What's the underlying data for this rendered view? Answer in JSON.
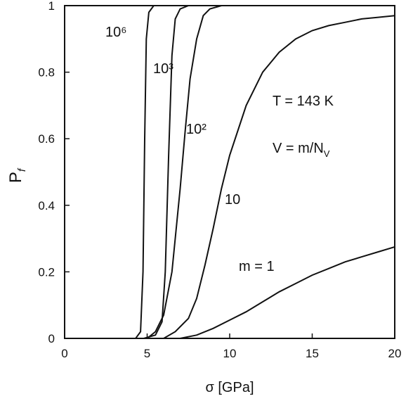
{
  "chart_data": {
    "type": "line",
    "xlabel": "σ [GPa]",
    "ylabel": {
      "text": "P",
      "sub": "f"
    },
    "xlim": [
      0,
      20
    ],
    "ylim": [
      0,
      1
    ],
    "xticks": [
      0,
      5,
      10,
      15,
      20
    ],
    "yticks": [
      0,
      0.2,
      0.4,
      0.6,
      0.8,
      1
    ],
    "color": "#111111",
    "series": [
      {
        "name": "m = 1",
        "x": [
          0,
          7,
          8,
          9,
          10,
          11,
          12,
          13,
          14,
          15,
          16,
          17,
          18,
          19,
          20
        ],
        "values": [
          0,
          0,
          0.01,
          0.03,
          0.055,
          0.08,
          0.11,
          0.14,
          0.165,
          0.19,
          0.21,
          0.23,
          0.245,
          0.26,
          0.275
        ]
      },
      {
        "name": "10",
        "x": [
          0,
          6,
          6.7,
          7.5,
          8,
          8.5,
          9,
          9.5,
          10,
          11,
          12,
          13,
          14,
          15,
          16,
          17,
          18,
          19,
          20
        ],
        "values": [
          0,
          0,
          0.02,
          0.06,
          0.12,
          0.22,
          0.33,
          0.45,
          0.55,
          0.7,
          0.8,
          0.86,
          0.9,
          0.925,
          0.94,
          0.95,
          0.96,
          0.965,
          0.97
        ]
      },
      {
        "name": "10²",
        "x": [
          0,
          5,
          5.5,
          6,
          6.5,
          7,
          7.3,
          7.6,
          8,
          8.4,
          8.8,
          9.5,
          20
        ],
        "values": [
          0,
          0,
          0.02,
          0.07,
          0.2,
          0.45,
          0.62,
          0.78,
          0.9,
          0.97,
          0.99,
          1,
          1
        ]
      },
      {
        "name": "10³",
        "x": [
          0,
          4.8,
          5.5,
          5.9,
          6.1,
          6.3,
          6.5,
          6.7,
          7,
          7.5,
          20
        ],
        "values": [
          0,
          0,
          0.01,
          0.05,
          0.2,
          0.55,
          0.85,
          0.96,
          0.99,
          1,
          1
        ]
      },
      {
        "name": "10⁶",
        "x": [
          0,
          4.3,
          4.6,
          4.75,
          4.85,
          4.95,
          5.1,
          5.4,
          20
        ],
        "values": [
          0,
          0,
          0.02,
          0.2,
          0.6,
          0.9,
          0.98,
          1,
          1
        ]
      }
    ],
    "annotations": [
      {
        "text": "T = 143 K"
      },
      {
        "text": "V = m/N",
        "sub": "V"
      }
    ]
  }
}
